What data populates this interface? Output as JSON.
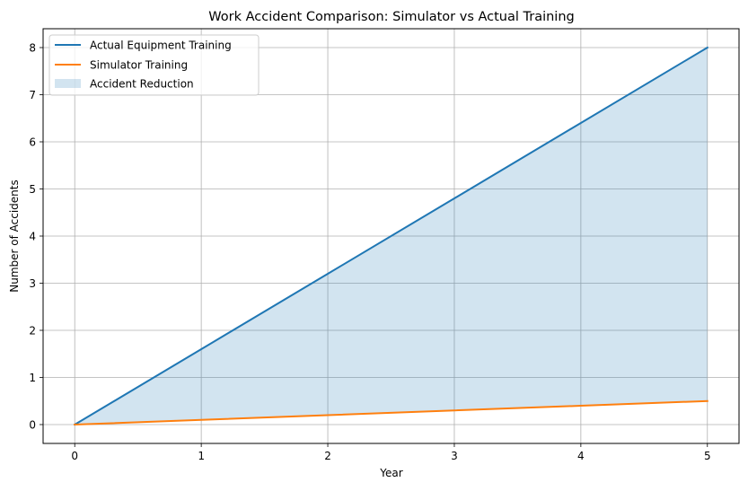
{
  "chart_data": {
    "type": "line",
    "title": "Work Accident Comparison: Simulator vs Actual Training",
    "xlabel": "Year",
    "ylabel": "Number of Accidents",
    "x": [
      0,
      1,
      2,
      3,
      4,
      5
    ],
    "xticks": [
      "0",
      "1",
      "2",
      "3",
      "4",
      "5"
    ],
    "yticks": [
      "0",
      "1",
      "2",
      "3",
      "4",
      "5",
      "6",
      "7",
      "8"
    ],
    "xlim": [
      -0.25,
      5.25
    ],
    "ylim": [
      -0.4,
      8.4
    ],
    "grid": true,
    "legend_position": "upper left",
    "series": [
      {
        "name": "Actual Equipment Training",
        "type": "line",
        "color": "#1f77b4",
        "values": [
          0,
          1.6,
          3.2,
          4.8,
          6.4,
          8.0
        ]
      },
      {
        "name": "Simulator Training",
        "type": "line",
        "color": "#ff7f0e",
        "values": [
          0,
          0.1,
          0.2,
          0.3,
          0.4,
          0.5
        ]
      }
    ],
    "fill_between": {
      "name": "Accident Reduction",
      "color": "#1f77b4",
      "alpha": 0.2,
      "between": [
        "Simulator Training",
        "Actual Equipment Training"
      ]
    }
  }
}
